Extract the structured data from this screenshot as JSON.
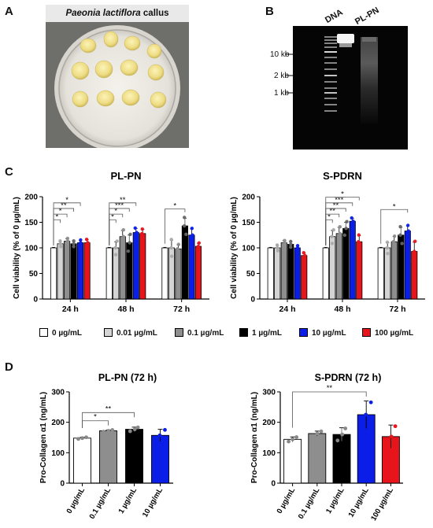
{
  "panels": {
    "a": {
      "letter": "A",
      "title_italic": "Paeonia lactiflora",
      "title_rest": " callus"
    },
    "b": {
      "letter": "B",
      "lane_dna": "DNA",
      "lane_plpn": "PL-PN",
      "markers": [
        "10 kb",
        "2 kb",
        "1 kb"
      ]
    },
    "c": {
      "letter": "C"
    },
    "d": {
      "letter": "D"
    }
  },
  "legend": [
    "0 µg/mL",
    "0.01 µg/mL",
    "0.1 µg/mL",
    "1 µg/mL",
    "10 µg/mL",
    "100 µg/mL"
  ],
  "colors": {
    "0 µg/mL": "#ffffff",
    "0.01 µg/mL": "#d4d4d4",
    "0.1 µg/mL": "#8e8e8e",
    "1 µg/mL": "#000000",
    "10 µg/mL": "#0b1ee8",
    "100 µg/mL": "#e8141b"
  },
  "chart_data": [
    {
      "type": "bar",
      "title": "PL-PN",
      "ylabel": "Cell viability (% of 0 µg/mL)",
      "ylim": [
        0,
        200
      ],
      "yticks": [
        0,
        50,
        100,
        150,
        200
      ],
      "categories": [
        "24 h",
        "48 h",
        "72 h"
      ],
      "series": [
        {
          "name": "0 µg/mL",
          "values": [
            100,
            100,
            100
          ],
          "errors": [
            1,
            1,
            1
          ]
        },
        {
          "name": "0.01 µg/mL",
          "values": [
            108,
            100,
            100
          ],
          "errors": [
            5,
            12,
            15
          ]
        },
        {
          "name": "0.1 µg/mL",
          "values": [
            113,
            122,
            98
          ],
          "errors": [
            5,
            12,
            8
          ]
        },
        {
          "name": "1 µg/mL",
          "values": [
            108,
            110,
            143
          ],
          "errors": [
            5,
            15,
            15
          ]
        },
        {
          "name": "10 µg/mL",
          "values": [
            110,
            130,
            125
          ],
          "errors": [
            5,
            8,
            12
          ]
        },
        {
          "name": "100 µg/mL",
          "values": [
            110,
            128,
            103
          ],
          "errors": [
            6,
            8,
            6
          ]
        }
      ],
      "significance": [
        {
          "group": "24 h",
          "to": "0.01 µg/mL",
          "label": "*"
        },
        {
          "group": "24 h",
          "to": "0.1 µg/mL",
          "label": "*"
        },
        {
          "group": "24 h",
          "to": "1 µg/mL",
          "label": "**"
        },
        {
          "group": "24 h",
          "to": "10 µg/mL",
          "label": "*"
        },
        {
          "group": "48 h",
          "to": "0.01 µg/mL",
          "label": "*"
        },
        {
          "group": "48 h",
          "to": "0.1 µg/mL",
          "label": "*"
        },
        {
          "group": "48 h",
          "to": "1 µg/mL",
          "label": "***"
        },
        {
          "group": "48 h",
          "to": "10 µg/mL",
          "label": "**"
        },
        {
          "group": "72 h",
          "to": "1 µg/mL",
          "label": "*"
        }
      ]
    },
    {
      "type": "bar",
      "title": "S-PDRN",
      "ylabel": "Cell viability (% of 0 µg/mL)",
      "ylim": [
        0,
        200
      ],
      "yticks": [
        0,
        50,
        100,
        150,
        200
      ],
      "categories": [
        "24 h",
        "48 h",
        "72 h"
      ],
      "series": [
        {
          "name": "0 µg/mL",
          "values": [
            100,
            100,
            100
          ],
          "errors": [
            1,
            1,
            1
          ]
        },
        {
          "name": "0.01 µg/mL",
          "values": [
            100,
            122,
            100
          ],
          "errors": [
            5,
            12,
            10
          ]
        },
        {
          "name": "0.1 µg/mL",
          "values": [
            110,
            128,
            112
          ],
          "errors": [
            4,
            12,
            10
          ]
        },
        {
          "name": "1 µg/mL",
          "values": [
            107,
            138,
            125
          ],
          "errors": [
            5,
            12,
            15
          ]
        },
        {
          "name": "10 µg/mL",
          "values": [
            100,
            152,
            133
          ],
          "errors": [
            4,
            6,
            10
          ]
        },
        {
          "name": "100 µg/mL",
          "values": [
            85,
            112,
            93
          ],
          "errors": [
            5,
            12,
            18
          ]
        }
      ],
      "significance": [
        {
          "group": "48 h",
          "to": "0.01 µg/mL",
          "label": "*"
        },
        {
          "group": "48 h",
          "to": "0.1 µg/mL",
          "label": "**"
        },
        {
          "group": "48 h",
          "to": "1 µg/mL",
          "label": "**"
        },
        {
          "group": "48 h",
          "to": "10 µg/mL",
          "label": "***"
        },
        {
          "group": "48 h",
          "to": "100 µg/mL",
          "label": "*"
        },
        {
          "group": "72 h",
          "to": "10 µg/mL",
          "label": "*"
        }
      ]
    },
    {
      "type": "bar",
      "title": "PL-PN (72 h)",
      "ylabel": "Pro-Collagen α1 (ng/mL)",
      "ylim": [
        0,
        300
      ],
      "yticks": [
        0,
        100,
        200,
        300
      ],
      "categories": [
        "0 µg/mL",
        "0.1 µg/mL",
        "1 µg/mL",
        "10 µg/mL"
      ],
      "values": [
        148,
        172,
        177,
        157
      ],
      "errors": [
        3,
        3,
        7,
        20
      ],
      "significance": [
        {
          "from": "0 µg/mL",
          "to": "0.1 µg/mL",
          "label": "*"
        },
        {
          "from": "0 µg/mL",
          "to": "1 µg/mL",
          "label": "**"
        }
      ]
    },
    {
      "type": "bar",
      "title": "S-PDRN (72 h)",
      "ylabel": "Pro-Collagen α1 (ng/mL)",
      "ylim": [
        0,
        300
      ],
      "yticks": [
        0,
        100,
        200,
        300
      ],
      "categories": [
        "0 µg/mL",
        "0.1 µg/mL",
        "1 µg/mL",
        "10 µg/mL",
        "100 µg/mL"
      ],
      "values": [
        144,
        163,
        160,
        225,
        153
      ],
      "errors": [
        8,
        8,
        22,
        45,
        38
      ],
      "significance": [
        {
          "from": "0 µg/mL",
          "to": "10 µg/mL",
          "label": "**"
        }
      ]
    }
  ]
}
